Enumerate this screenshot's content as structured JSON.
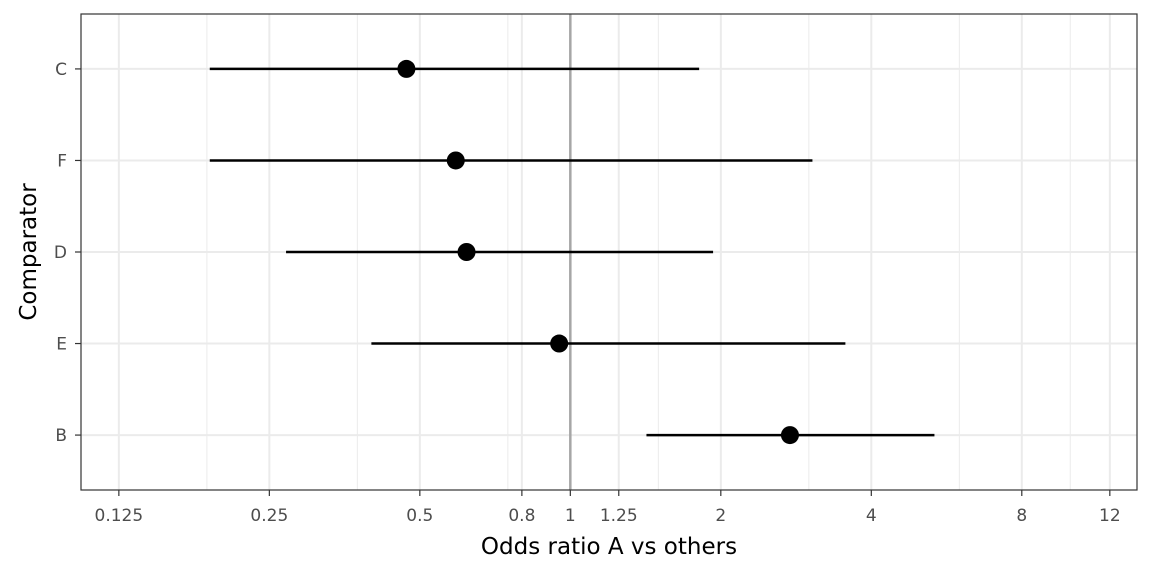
{
  "chart_data": {
    "type": "forest",
    "xlabel": "Odds ratio A vs others",
    "ylabel": "Comparator",
    "x_scale": "log2",
    "xlim": [
      0.105,
      13.6
    ],
    "x_ticks": [
      0.125,
      0.25,
      0.5,
      0.8,
      1,
      1.25,
      2,
      4,
      8,
      12
    ],
    "x_tick_labels": [
      "0.125",
      "0.25",
      "0.5",
      "0.8",
      "1",
      "1.25",
      "2",
      "4",
      "8",
      "12"
    ],
    "x_minor_grid": [
      0.1875,
      0.375,
      0.75,
      1.5,
      3,
      6,
      10
    ],
    "reference_line": 1,
    "grid": true,
    "categories": [
      "C",
      "F",
      "D",
      "E",
      "B"
    ],
    "estimates": [
      0.47,
      0.59,
      0.62,
      0.95,
      2.75
    ],
    "ci_lower": [
      0.19,
      0.19,
      0.27,
      0.4,
      1.42
    ],
    "ci_upper": [
      1.81,
      3.05,
      1.93,
      3.55,
      5.35
    ],
    "colors": {
      "point": "#000000",
      "reference_line": "#a6a6a6",
      "grid": "#ebebeb",
      "panel_border": "#333333"
    }
  }
}
